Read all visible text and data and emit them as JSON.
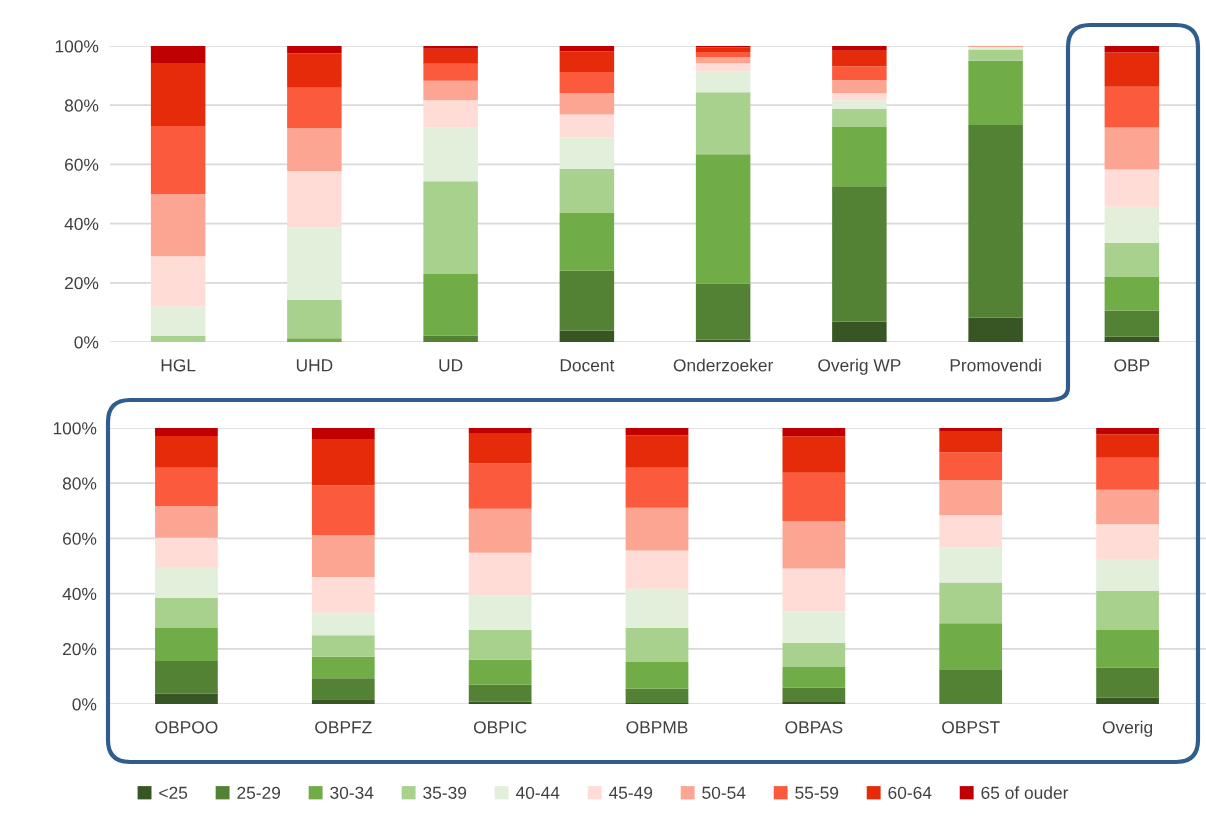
{
  "chart_data": [
    {
      "type": "bar",
      "stacked": true,
      "categories": [
        "HGL",
        "UHD",
        "UD",
        "Docent",
        "Onderzoeker",
        "Overig WP",
        "Promovendi",
        "OBP"
      ],
      "ylim": [
        0,
        100
      ],
      "yticks": [
        {
          "value": 0,
          "label": "0%"
        },
        {
          "value": 20,
          "label": "20%"
        },
        {
          "value": 40,
          "label": "40%"
        },
        {
          "value": 60,
          "label": "60%"
        },
        {
          "value": 80,
          "label": "80%"
        },
        {
          "value": 100,
          "label": "100%"
        }
      ],
      "grid": "y",
      "legend": "bottom",
      "series": [
        {
          "name": "<25",
          "color": "#375623",
          "values": [
            0,
            0,
            0,
            3.9,
            0.8,
            6.9,
            8.3,
            1.8
          ]
        },
        {
          "name": "25-29",
          "color": "#548235",
          "values": [
            0,
            0,
            2.1,
            20.2,
            19,
            45.7,
            65,
            8.8
          ]
        },
        {
          "name": "30-34",
          "color": "#70ad47",
          "values": [
            0,
            1.3,
            20.9,
            19.5,
            43.6,
            20,
            21.7,
            11.4
          ]
        },
        {
          "name": "35-39",
          "color": "#a9d18e",
          "values": [
            2,
            13,
            31.3,
            14.9,
            21,
            6.1,
            3.8,
            11.5
          ]
        },
        {
          "name": "40-44",
          "color": "#e2efda",
          "values": [
            10,
            24.4,
            18.1,
            10.6,
            7.1,
            2.9,
            0.8,
            12.2
          ]
        },
        {
          "name": "45-49",
          "color": "#ffdcd6",
          "values": [
            17,
            19,
            9.3,
            7.8,
            2.7,
            2.4,
            0.2,
            12.6
          ]
        },
        {
          "name": "50-54",
          "color": "#fca593",
          "values": [
            21,
            14.5,
            6.6,
            7.1,
            2.1,
            4.5,
            0,
            14.2
          ]
        },
        {
          "name": "55-59",
          "color": "#fb5b3c",
          "values": [
            23,
            13.7,
            5.7,
            7.2,
            1.7,
            4.7,
            0.2,
            13.7
          ]
        },
        {
          "name": "60-64",
          "color": "#e52b09",
          "values": [
            21,
            11.6,
            5.1,
            6.9,
            1.5,
            5.2,
            0,
            11.6
          ]
        },
        {
          "name": "65 of ouder",
          "color": "#c00000",
          "values": [
            6,
            2.5,
            0.9,
            1.9,
            0.5,
            1.6,
            0,
            2.2
          ]
        }
      ]
    },
    {
      "type": "bar",
      "stacked": true,
      "categories": [
        "OBPOO",
        "OBPFZ",
        "OBPIC",
        "OBPMB",
        "OBPAS",
        "OBPST",
        "Overig"
      ],
      "ylim": [
        0,
        100
      ],
      "yticks": [
        {
          "value": 0,
          "label": "0%"
        },
        {
          "value": 20,
          "label": "20%"
        },
        {
          "value": 40,
          "label": "40%"
        },
        {
          "value": 60,
          "label": "60%"
        },
        {
          "value": 80,
          "label": "80%"
        },
        {
          "value": 100,
          "label": "100%"
        }
      ],
      "grid": "y",
      "series": [
        {
          "color": "#375623",
          "values": [
            3.7,
            1.7,
            0.8,
            0.4,
            0.7,
            0,
            2.3
          ]
        },
        {
          "color": "#548235",
          "values": [
            11.9,
            7.6,
            6.2,
            5.2,
            5.2,
            12.6,
            10.8
          ]
        },
        {
          "color": "#70ad47",
          "values": [
            11.9,
            7.8,
            9,
            9.6,
            7.5,
            16.7,
            13.7
          ]
        },
        {
          "color": "#a9d18e",
          "values": [
            10.9,
            7.8,
            10.9,
            12.4,
            8.7,
            14.7,
            14.2
          ]
        },
        {
          "color": "#e2efda",
          "values": [
            11.2,
            8.2,
            12.3,
            14.2,
            11.4,
            12.7,
            11.5
          ]
        },
        {
          "color": "#ffdcd6",
          "values": [
            10.6,
            12.9,
            15.6,
            13.8,
            15.6,
            11.7,
            12.6
          ]
        },
        {
          "color": "#fca593",
          "values": [
            11.5,
            15.2,
            15.9,
            15.5,
            17.1,
            12.8,
            12.5
          ]
        },
        {
          "color": "#fb5b3c",
          "values": [
            13.9,
            18.1,
            16.5,
            14.5,
            17.6,
            9.9,
            11.6
          ]
        },
        {
          "color": "#e52b09",
          "values": [
            11.5,
            16.7,
            11,
            11.8,
            13.2,
            7.8,
            8.5
          ]
        },
        {
          "color": "#c00000",
          "values": [
            2.9,
            4,
            1.8,
            2.6,
            3,
            1.1,
            2.3
          ]
        }
      ]
    }
  ]
}
